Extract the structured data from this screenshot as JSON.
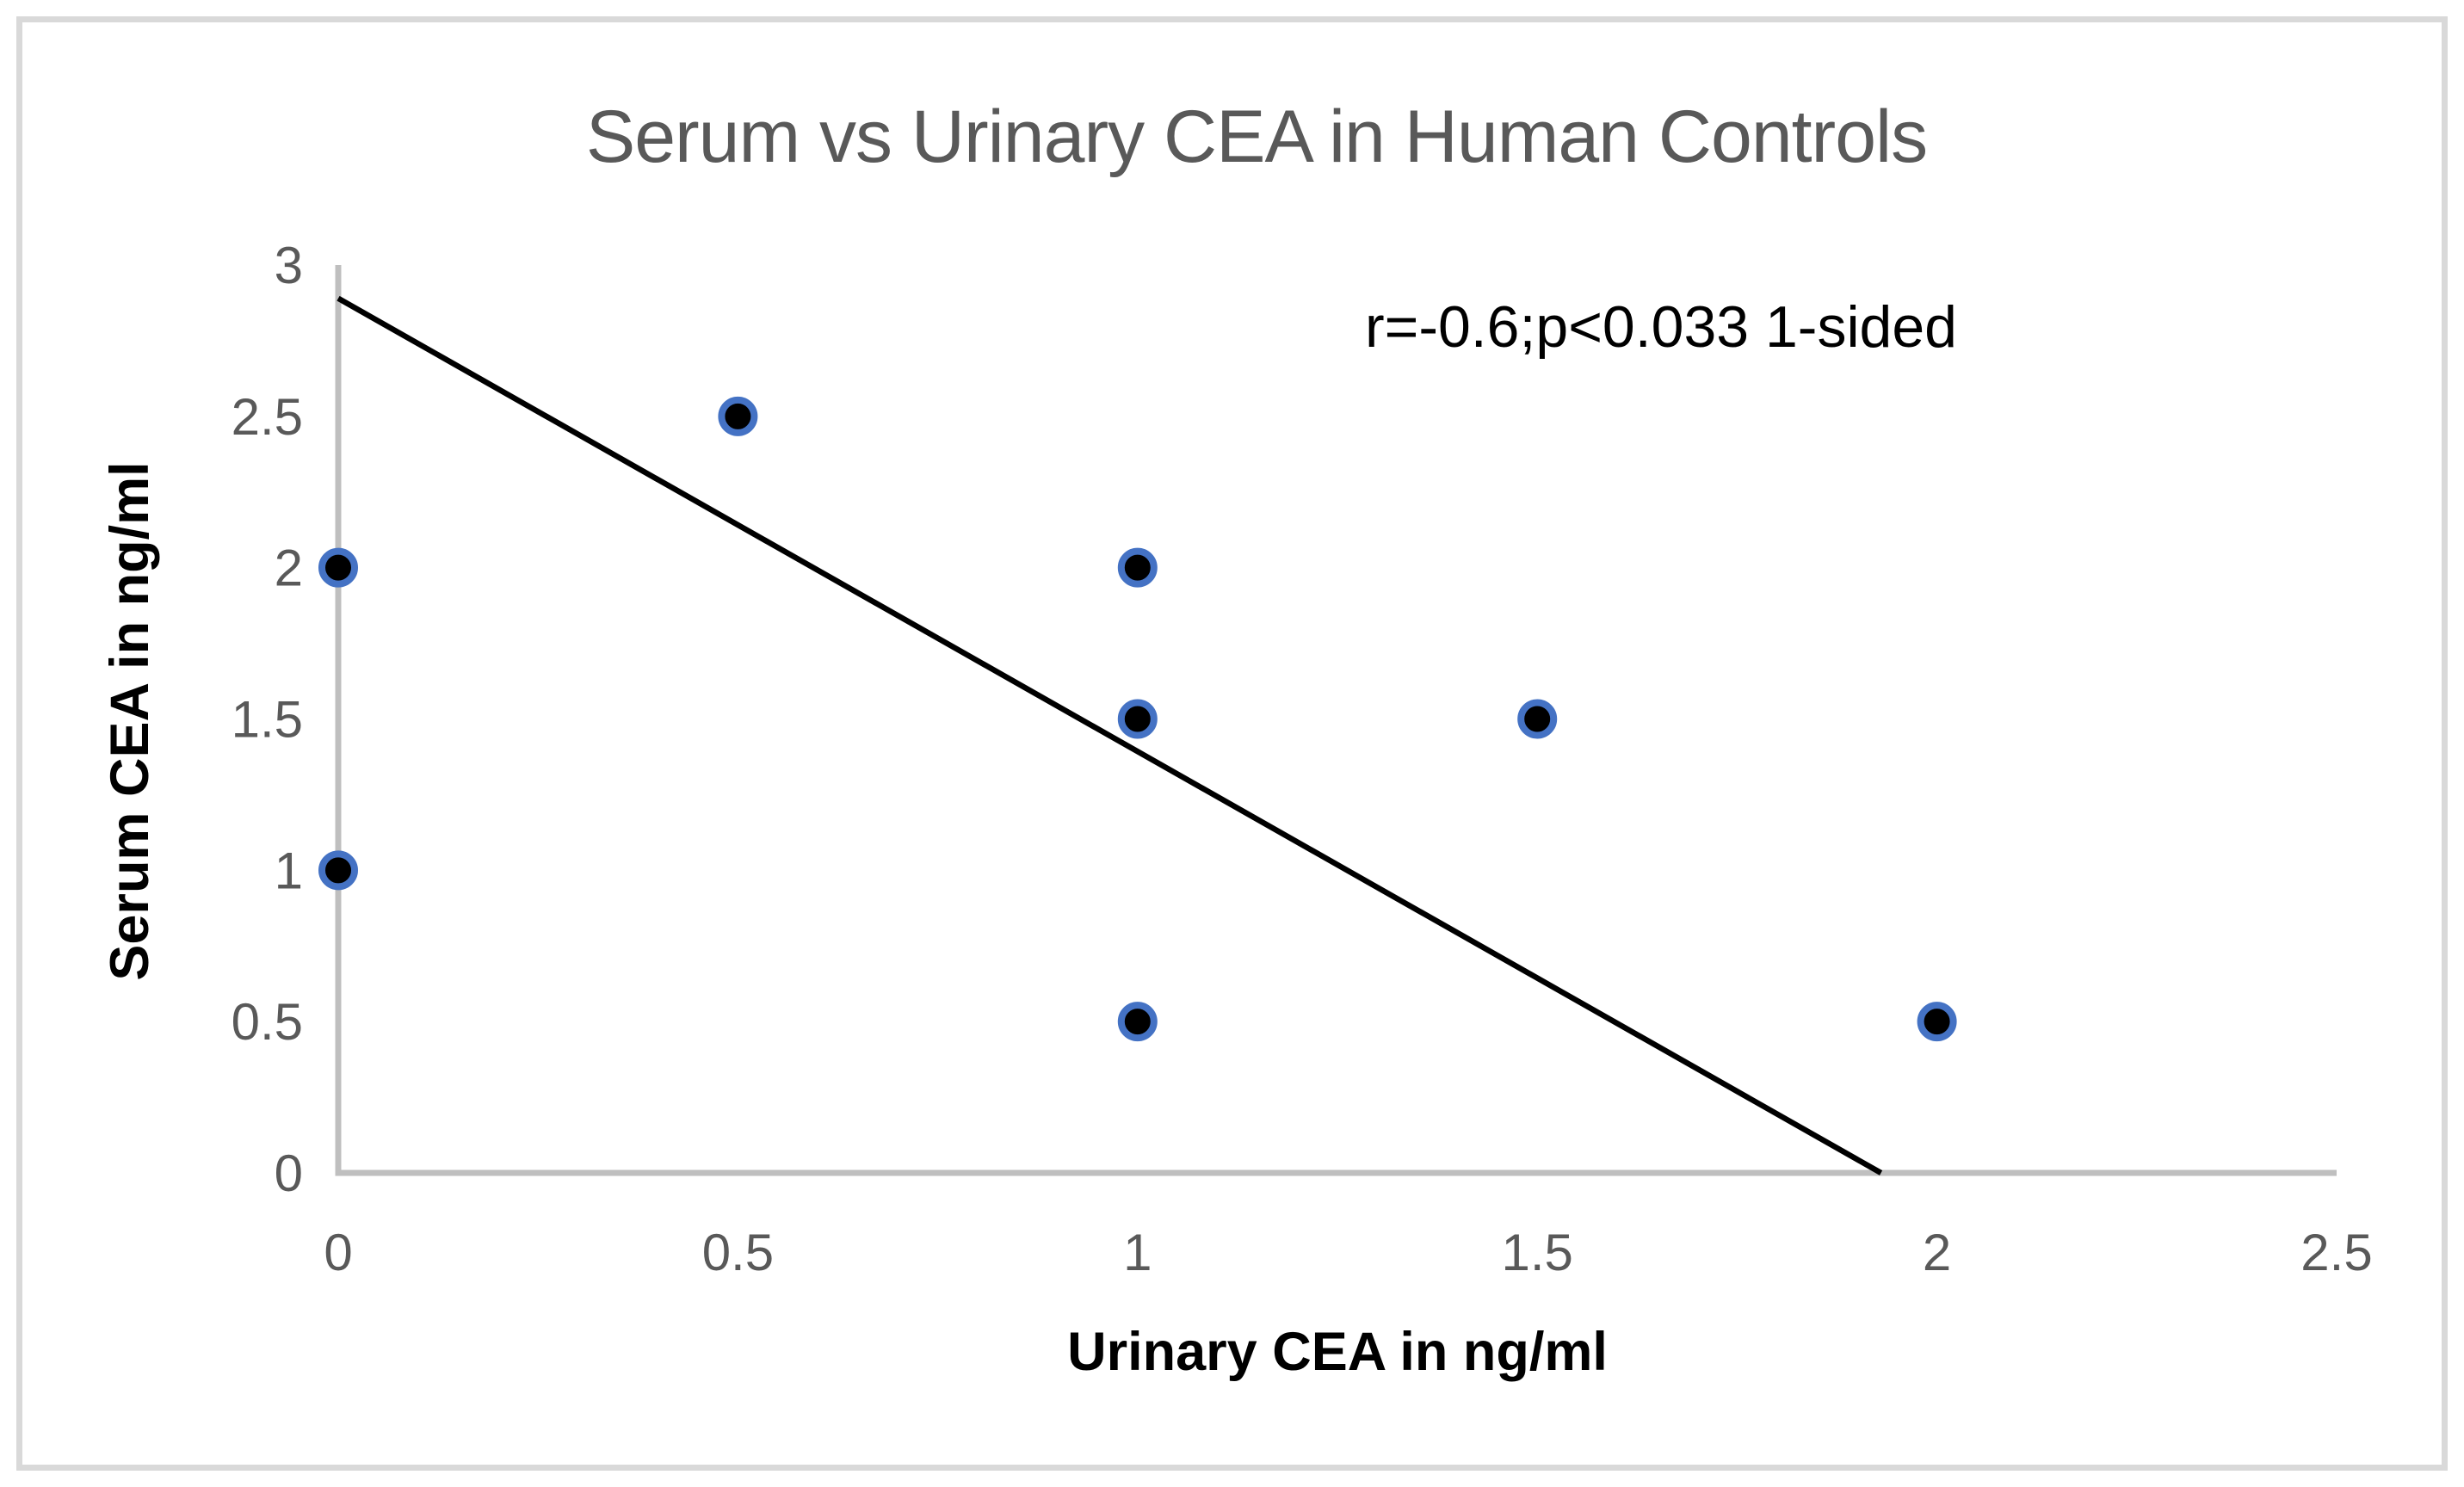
{
  "frame": {
    "background": "#FFFFFF",
    "border_color": "#D9D9D9",
    "border_width": 7
  },
  "chart_data": {
    "type": "scatter",
    "title": "Serum vs Urinary CEA in Human Controls",
    "annotation": "r=-0.6;p<0.033 1-sided",
    "xlabel": "Urinary CEA in ng/ml",
    "ylabel": "Serum CEA in ng/ml",
    "xlim": [
      0,
      2.5
    ],
    "ylim": [
      0,
      3
    ],
    "xticks": [
      0,
      0.5,
      1,
      1.5,
      2,
      2.5
    ],
    "xtick_labels": [
      "0",
      "0.5",
      "1",
      "1.5",
      "2",
      "2.5"
    ],
    "yticks": [
      0,
      0.5,
      1,
      1.5,
      2,
      2.5,
      3
    ],
    "ytick_labels": [
      "0",
      "0.5",
      "1",
      "1.5",
      "2",
      "2.5",
      "3"
    ],
    "grid": false,
    "legend": null,
    "series": [
      {
        "name": "Human Controls",
        "points": [
          {
            "x": 0,
            "y": 2
          },
          {
            "x": 0,
            "y": 1
          },
          {
            "x": 0.5,
            "y": 2.5
          },
          {
            "x": 1,
            "y": 2
          },
          {
            "x": 1,
            "y": 1.5
          },
          {
            "x": 1,
            "y": 0.5
          },
          {
            "x": 1.5,
            "y": 1.5
          },
          {
            "x": 2,
            "y": 0.5
          }
        ]
      }
    ],
    "trendline": {
      "x_start": 0,
      "y_start": 2.89,
      "x_end": 1.93,
      "y_end": 0
    },
    "colors": {
      "background": "#FFFFFF",
      "title": "#595959",
      "annotation": "#000000",
      "axis_title": "#000000",
      "tick_label": "#595959",
      "axis_line": "#BFBFBF",
      "trendline": "#000000",
      "marker_fill": "#000000",
      "marker_ring": "#4472C4"
    },
    "marker": {
      "radius": 19,
      "ring_width": 8
    }
  }
}
